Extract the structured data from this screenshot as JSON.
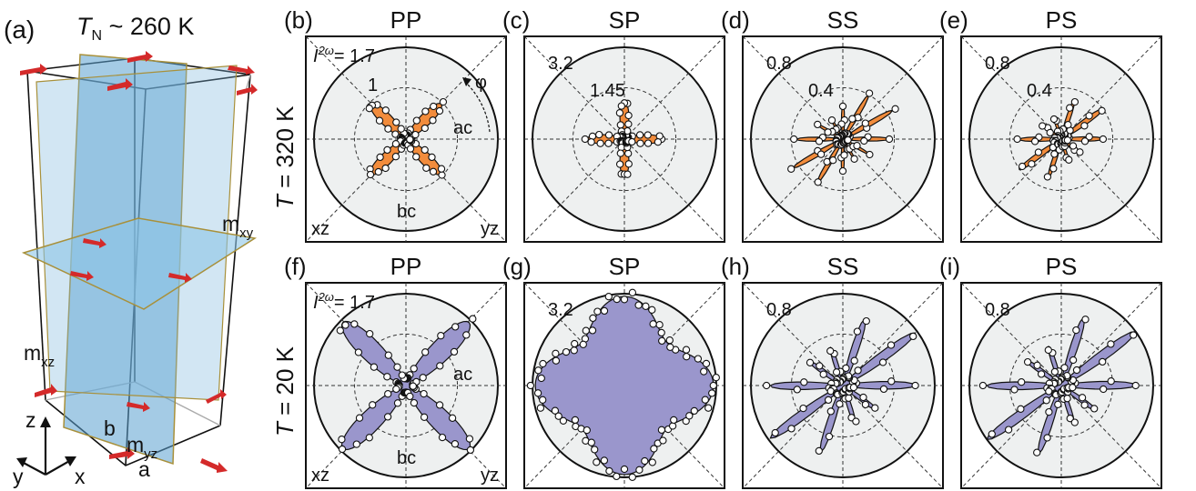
{
  "figure": {
    "panel_a": {
      "tag": "(a)",
      "tn_symbol": "T",
      "tn_sub": "N",
      "tn_text": " ~ 260 K",
      "m_xy": "m",
      "m_xy_sub": "xy",
      "m_xz": "m",
      "m_xz_sub": "xz",
      "m_yz": "m",
      "m_yz_sub": "yz",
      "axis_a": "a",
      "axis_b": "b",
      "axis_x": "x",
      "axis_y": "y",
      "axis_z": "z"
    },
    "row_labels": [
      {
        "t": "T",
        "rest": " = 320 K"
      },
      {
        "t": "T",
        "rest": " = 20 K"
      }
    ],
    "intensity_label_pre": "I",
    "intensity_label_sup": "2ω",
    "plane_labels": {
      "ac": "ac",
      "bc": "bc",
      "xz": "xz",
      "yz": "yz"
    },
    "phi_label": "φ",
    "colors": {
      "high_T_fill": "#f28c3c",
      "low_T_fill": "#9a96cc",
      "panel_bg": "#eef0f0"
    },
    "panels": [
      {
        "tag": "(b)",
        "pol": "PP",
        "outer": "= 1.7",
        "inner": "1",
        "show_I": true,
        "show_planes": true,
        "show_phi": true
      },
      {
        "tag": "(c)",
        "pol": "SP",
        "outer": "3.2",
        "inner": "1.45",
        "show_I": false,
        "show_planes": false,
        "show_phi": false
      },
      {
        "tag": "(d)",
        "pol": "SS",
        "outer": "0.8",
        "inner": "0.4",
        "show_I": false,
        "show_planes": false,
        "show_phi": false
      },
      {
        "tag": "(e)",
        "pol": "PS",
        "outer": "0.8",
        "inner": "0.4",
        "show_I": false,
        "show_planes": false,
        "show_phi": false
      },
      {
        "tag": "(f)",
        "pol": "PP",
        "outer": "= 1.7",
        "inner": "",
        "show_I": true,
        "show_planes": true,
        "show_phi": false
      },
      {
        "tag": "(g)",
        "pol": "SP",
        "outer": "3.2",
        "inner": "",
        "show_I": false,
        "show_planes": false,
        "show_phi": false
      },
      {
        "tag": "(h)",
        "pol": "SS",
        "outer": "0.8",
        "inner": "",
        "show_I": false,
        "show_planes": false,
        "show_phi": false
      },
      {
        "tag": "(i)",
        "pol": "PS",
        "outer": "0.8",
        "inner": "",
        "show_I": false,
        "show_planes": false,
        "show_phi": false
      }
    ]
  },
  "chart_data": [
    {
      "type": "polar",
      "panel": "b",
      "title": "PP",
      "temperature": "T = 320 K",
      "rmax": 1.7,
      "pattern": "four-lobe",
      "lobe_angles_deg": [
        45,
        135,
        225,
        315
      ],
      "lobe_amplitude": 0.92,
      "fill": "#f28c3c"
    },
    {
      "type": "polar",
      "panel": "c",
      "title": "SP",
      "temperature": "T = 320 K",
      "rmax": 3.2,
      "pattern": "four-lobe",
      "lobe_angles_deg": [
        0,
        90,
        180,
        270
      ],
      "lobe_amplitude": 1.3,
      "fill": "#f28c3c"
    },
    {
      "type": "polar",
      "panel": "d",
      "title": "SS",
      "temperature": "T = 320 K",
      "rmax": 0.8,
      "pattern": "many-lobe",
      "lobes": 12,
      "lobe_amplitude": 0.5,
      "fill": "#f28c3c"
    },
    {
      "type": "polar",
      "panel": "e",
      "title": "PS",
      "temperature": "T = 320 K",
      "rmax": 0.8,
      "pattern": "many-lobe",
      "lobes": 10,
      "lobe_amplitude": 0.45,
      "fill": "#f28c3c"
    },
    {
      "type": "polar",
      "panel": "f",
      "title": "PP",
      "temperature": "T = 20 K",
      "rmax": 1.7,
      "pattern": "four-lobe",
      "lobe_angles_deg": [
        45,
        135,
        225,
        315
      ],
      "lobe_amplitude": 1.65,
      "fill": "#9a96cc"
    },
    {
      "type": "polar",
      "panel": "g",
      "title": "SP",
      "temperature": "T = 20 K",
      "rmax": 3.2,
      "pattern": "four-lobe-broad",
      "lobe_angles_deg": [
        0,
        90,
        180,
        270
      ],
      "lobe_amplitude": 3.1,
      "fill": "#9a96cc"
    },
    {
      "type": "polar",
      "panel": "h",
      "title": "SS",
      "temperature": "T = 20 K",
      "rmax": 0.8,
      "pattern": "many-lobe",
      "lobes": 10,
      "lobe_amplitude": 0.78,
      "fill": "#9a96cc"
    },
    {
      "type": "polar",
      "panel": "i",
      "title": "PS",
      "temperature": "T = 20 K",
      "rmax": 0.8,
      "pattern": "many-lobe",
      "lobes": 10,
      "lobe_amplitude": 0.8,
      "fill": "#9a96cc"
    }
  ]
}
